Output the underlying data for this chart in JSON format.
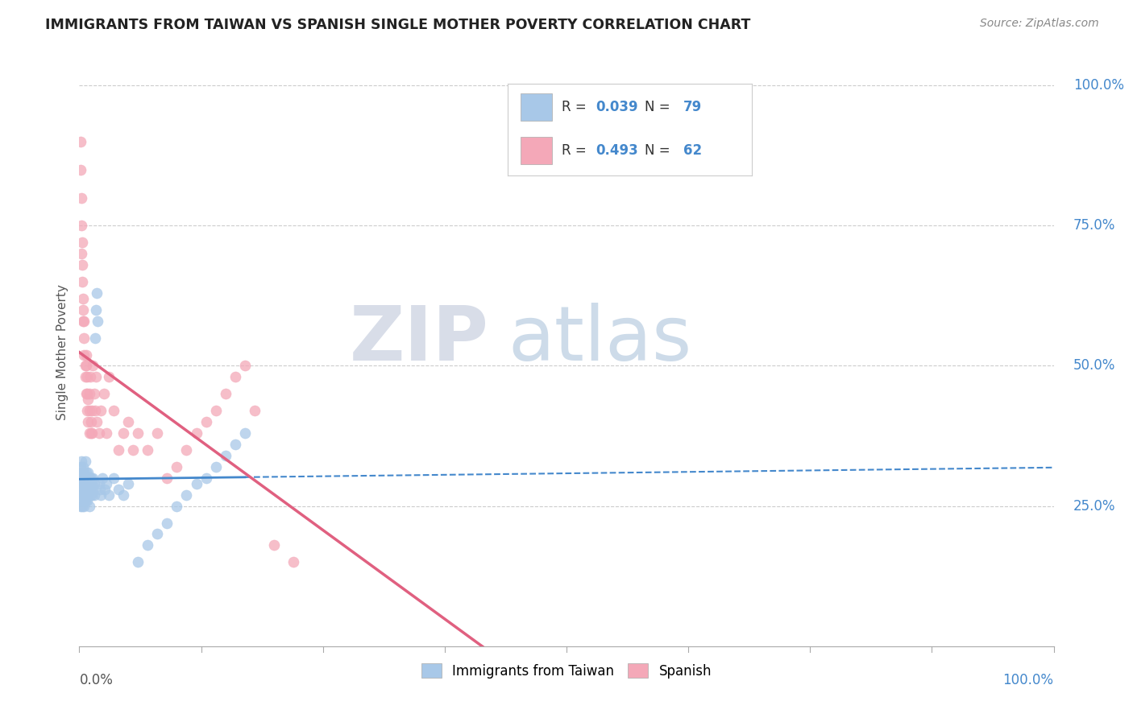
{
  "title": "IMMIGRANTS FROM TAIWAN VS SPANISH SINGLE MOTHER POVERTY CORRELATION CHART",
  "source": "Source: ZipAtlas.com",
  "ylabel": "Single Mother Poverty",
  "ytick_labels": [
    "25.0%",
    "50.0%",
    "75.0%",
    "100.0%"
  ],
  "ytick_positions": [
    0.25,
    0.5,
    0.75,
    1.0
  ],
  "legend1_r": "0.039",
  "legend1_n": "79",
  "legend2_r": "0.493",
  "legend2_n": "62",
  "blue_color": "#a8c8e8",
  "pink_color": "#f4a8b8",
  "blue_line_color": "#4488cc",
  "pink_line_color": "#e06080",
  "watermark_zip": "ZIP",
  "watermark_atlas": "atlas",
  "background_color": "#ffffff",
  "grid_color": "#cccccc",
  "blue_scatter_x": [
    0.001,
    0.001,
    0.001,
    0.001,
    0.001,
    0.002,
    0.002,
    0.002,
    0.002,
    0.002,
    0.002,
    0.003,
    0.003,
    0.003,
    0.003,
    0.003,
    0.004,
    0.004,
    0.004,
    0.004,
    0.004,
    0.005,
    0.005,
    0.005,
    0.005,
    0.006,
    0.006,
    0.006,
    0.006,
    0.007,
    0.007,
    0.007,
    0.007,
    0.008,
    0.008,
    0.008,
    0.009,
    0.009,
    0.009,
    0.01,
    0.01,
    0.01,
    0.011,
    0.011,
    0.012,
    0.012,
    0.013,
    0.013,
    0.014,
    0.014,
    0.015,
    0.015,
    0.016,
    0.017,
    0.018,
    0.019,
    0.02,
    0.021,
    0.022,
    0.024,
    0.026,
    0.028,
    0.03,
    0.035,
    0.04,
    0.045,
    0.05,
    0.06,
    0.07,
    0.08,
    0.09,
    0.1,
    0.11,
    0.12,
    0.13,
    0.14,
    0.15,
    0.16,
    0.17
  ],
  "blue_scatter_y": [
    0.28,
    0.3,
    0.27,
    0.25,
    0.32,
    0.29,
    0.26,
    0.31,
    0.28,
    0.27,
    0.33,
    0.3,
    0.28,
    0.25,
    0.27,
    0.31,
    0.29,
    0.26,
    0.28,
    0.3,
    0.32,
    0.27,
    0.29,
    0.31,
    0.25,
    0.3,
    0.28,
    0.26,
    0.33,
    0.28,
    0.29,
    0.27,
    0.31,
    0.3,
    0.28,
    0.26,
    0.29,
    0.31,
    0.27,
    0.3,
    0.28,
    0.25,
    0.29,
    0.27,
    0.3,
    0.28,
    0.29,
    0.27,
    0.3,
    0.28,
    0.27,
    0.29,
    0.55,
    0.6,
    0.63,
    0.58,
    0.29,
    0.28,
    0.27,
    0.3,
    0.28,
    0.29,
    0.27,
    0.3,
    0.28,
    0.27,
    0.29,
    0.15,
    0.18,
    0.2,
    0.22,
    0.25,
    0.27,
    0.29,
    0.3,
    0.32,
    0.34,
    0.36,
    0.38
  ],
  "pink_scatter_x": [
    0.001,
    0.001,
    0.002,
    0.002,
    0.002,
    0.003,
    0.003,
    0.003,
    0.004,
    0.004,
    0.004,
    0.005,
    0.005,
    0.005,
    0.006,
    0.006,
    0.007,
    0.007,
    0.007,
    0.008,
    0.008,
    0.008,
    0.009,
    0.009,
    0.01,
    0.01,
    0.01,
    0.011,
    0.012,
    0.012,
    0.013,
    0.013,
    0.014,
    0.015,
    0.016,
    0.017,
    0.018,
    0.02,
    0.022,
    0.025,
    0.028,
    0.03,
    0.035,
    0.04,
    0.045,
    0.05,
    0.055,
    0.06,
    0.07,
    0.08,
    0.09,
    0.1,
    0.11,
    0.12,
    0.13,
    0.14,
    0.15,
    0.16,
    0.17,
    0.18,
    0.2,
    0.22
  ],
  "pink_scatter_y": [
    0.85,
    0.9,
    0.75,
    0.8,
    0.7,
    0.65,
    0.72,
    0.68,
    0.6,
    0.58,
    0.62,
    0.55,
    0.52,
    0.58,
    0.5,
    0.48,
    0.52,
    0.45,
    0.5,
    0.48,
    0.42,
    0.45,
    0.4,
    0.44,
    0.38,
    0.42,
    0.45,
    0.48,
    0.4,
    0.38,
    0.42,
    0.38,
    0.5,
    0.45,
    0.42,
    0.48,
    0.4,
    0.38,
    0.42,
    0.45,
    0.38,
    0.48,
    0.42,
    0.35,
    0.38,
    0.4,
    0.35,
    0.38,
    0.35,
    0.38,
    0.3,
    0.32,
    0.35,
    0.38,
    0.4,
    0.42,
    0.45,
    0.48,
    0.5,
    0.42,
    0.18,
    0.15
  ]
}
